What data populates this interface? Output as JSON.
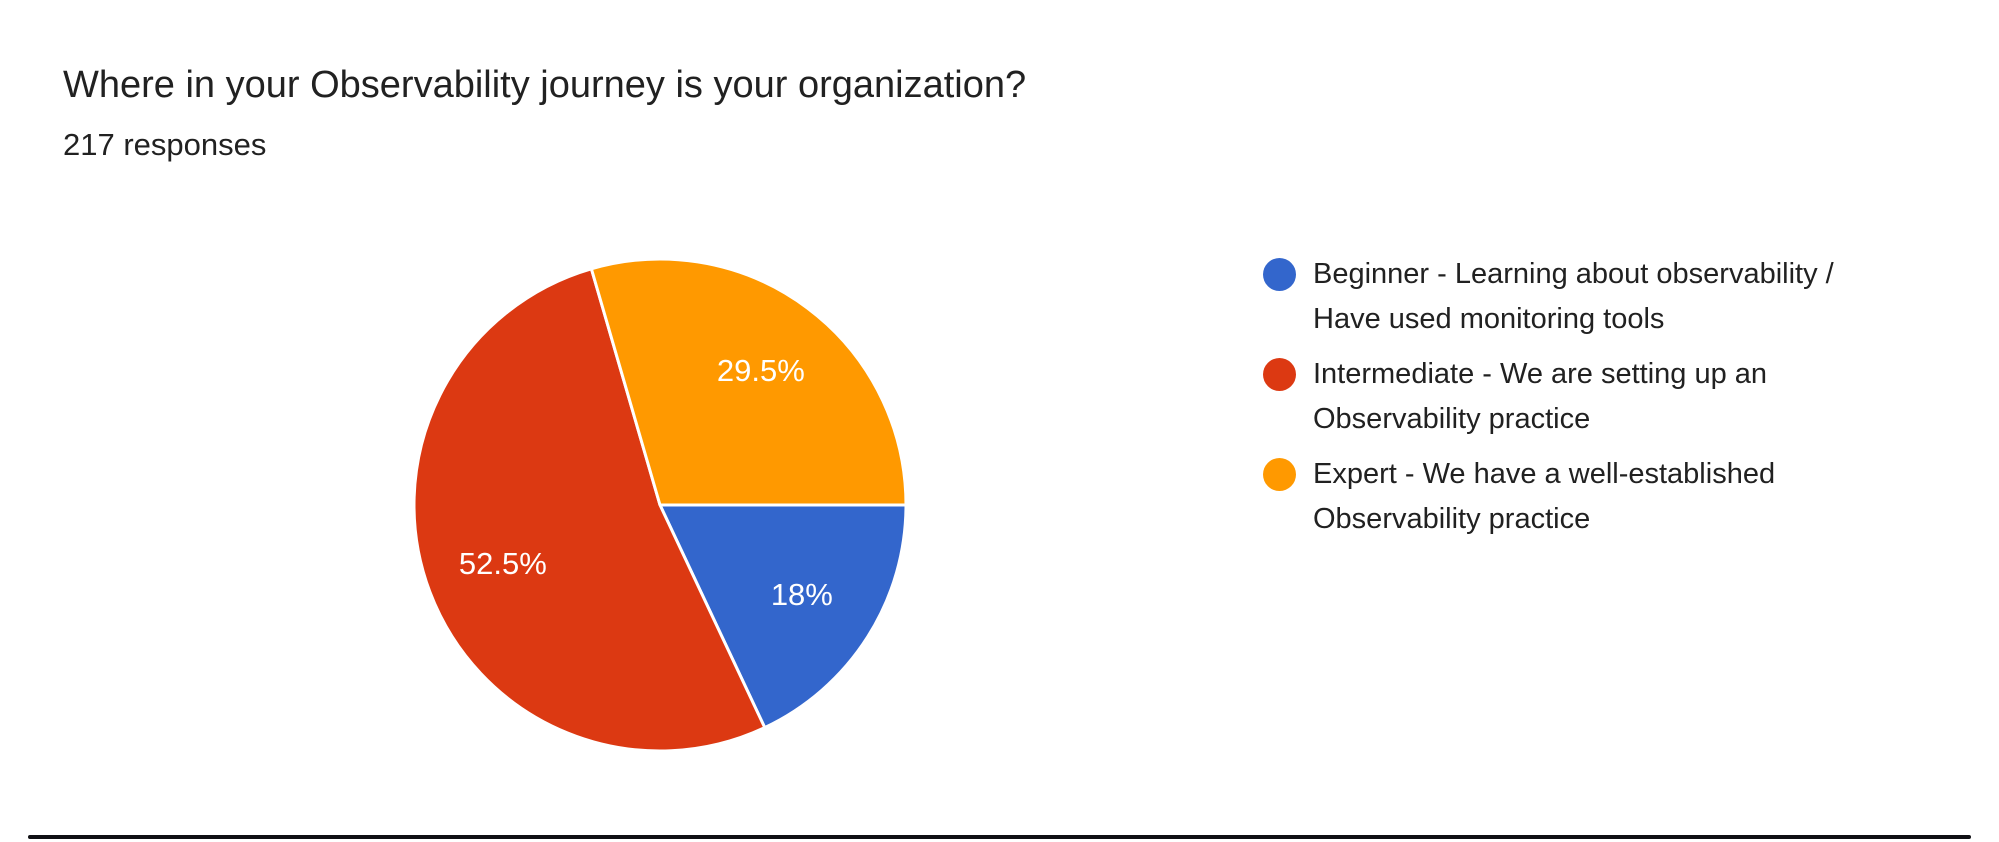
{
  "header": {
    "title": "Where in your Observability journey is your organization?",
    "subtitle": "217 responses"
  },
  "chart_data": {
    "type": "pie",
    "title": "Where in your Observability journey is your organization?",
    "subtitle": "217 responses",
    "start_angle_deg": 0,
    "direction": "clockwise",
    "legend_position": "right",
    "slice_label_color": "#ffffff",
    "slice_separator_color": "#ffffff",
    "slices": [
      {
        "label": "Beginner - Learning about observability / Have used monitoring tools",
        "percent": 18,
        "display": "18%",
        "color": "#3366CC"
      },
      {
        "label": "Intermediate - We are setting up an Observability practice",
        "percent": 52.5,
        "display": "52.5%",
        "color": "#DC3912"
      },
      {
        "label": "Expert - We have a well-established Observability practice",
        "percent": 29.5,
        "display": "29.5%",
        "color": "#FF9900"
      }
    ]
  },
  "legend": {
    "items": [
      {
        "lines": [
          "Beginner - Learning about observability /",
          "Have used monitoring tools"
        ],
        "color": "#3366CC"
      },
      {
        "lines": [
          "Intermediate - We are setting up an",
          "Observability practice"
        ],
        "color": "#DC3912"
      },
      {
        "lines": [
          "Expert - We have a well-established",
          "Observability practice"
        ],
        "color": "#FF9900"
      }
    ]
  },
  "footer": {
    "bar_color": "#101014"
  }
}
